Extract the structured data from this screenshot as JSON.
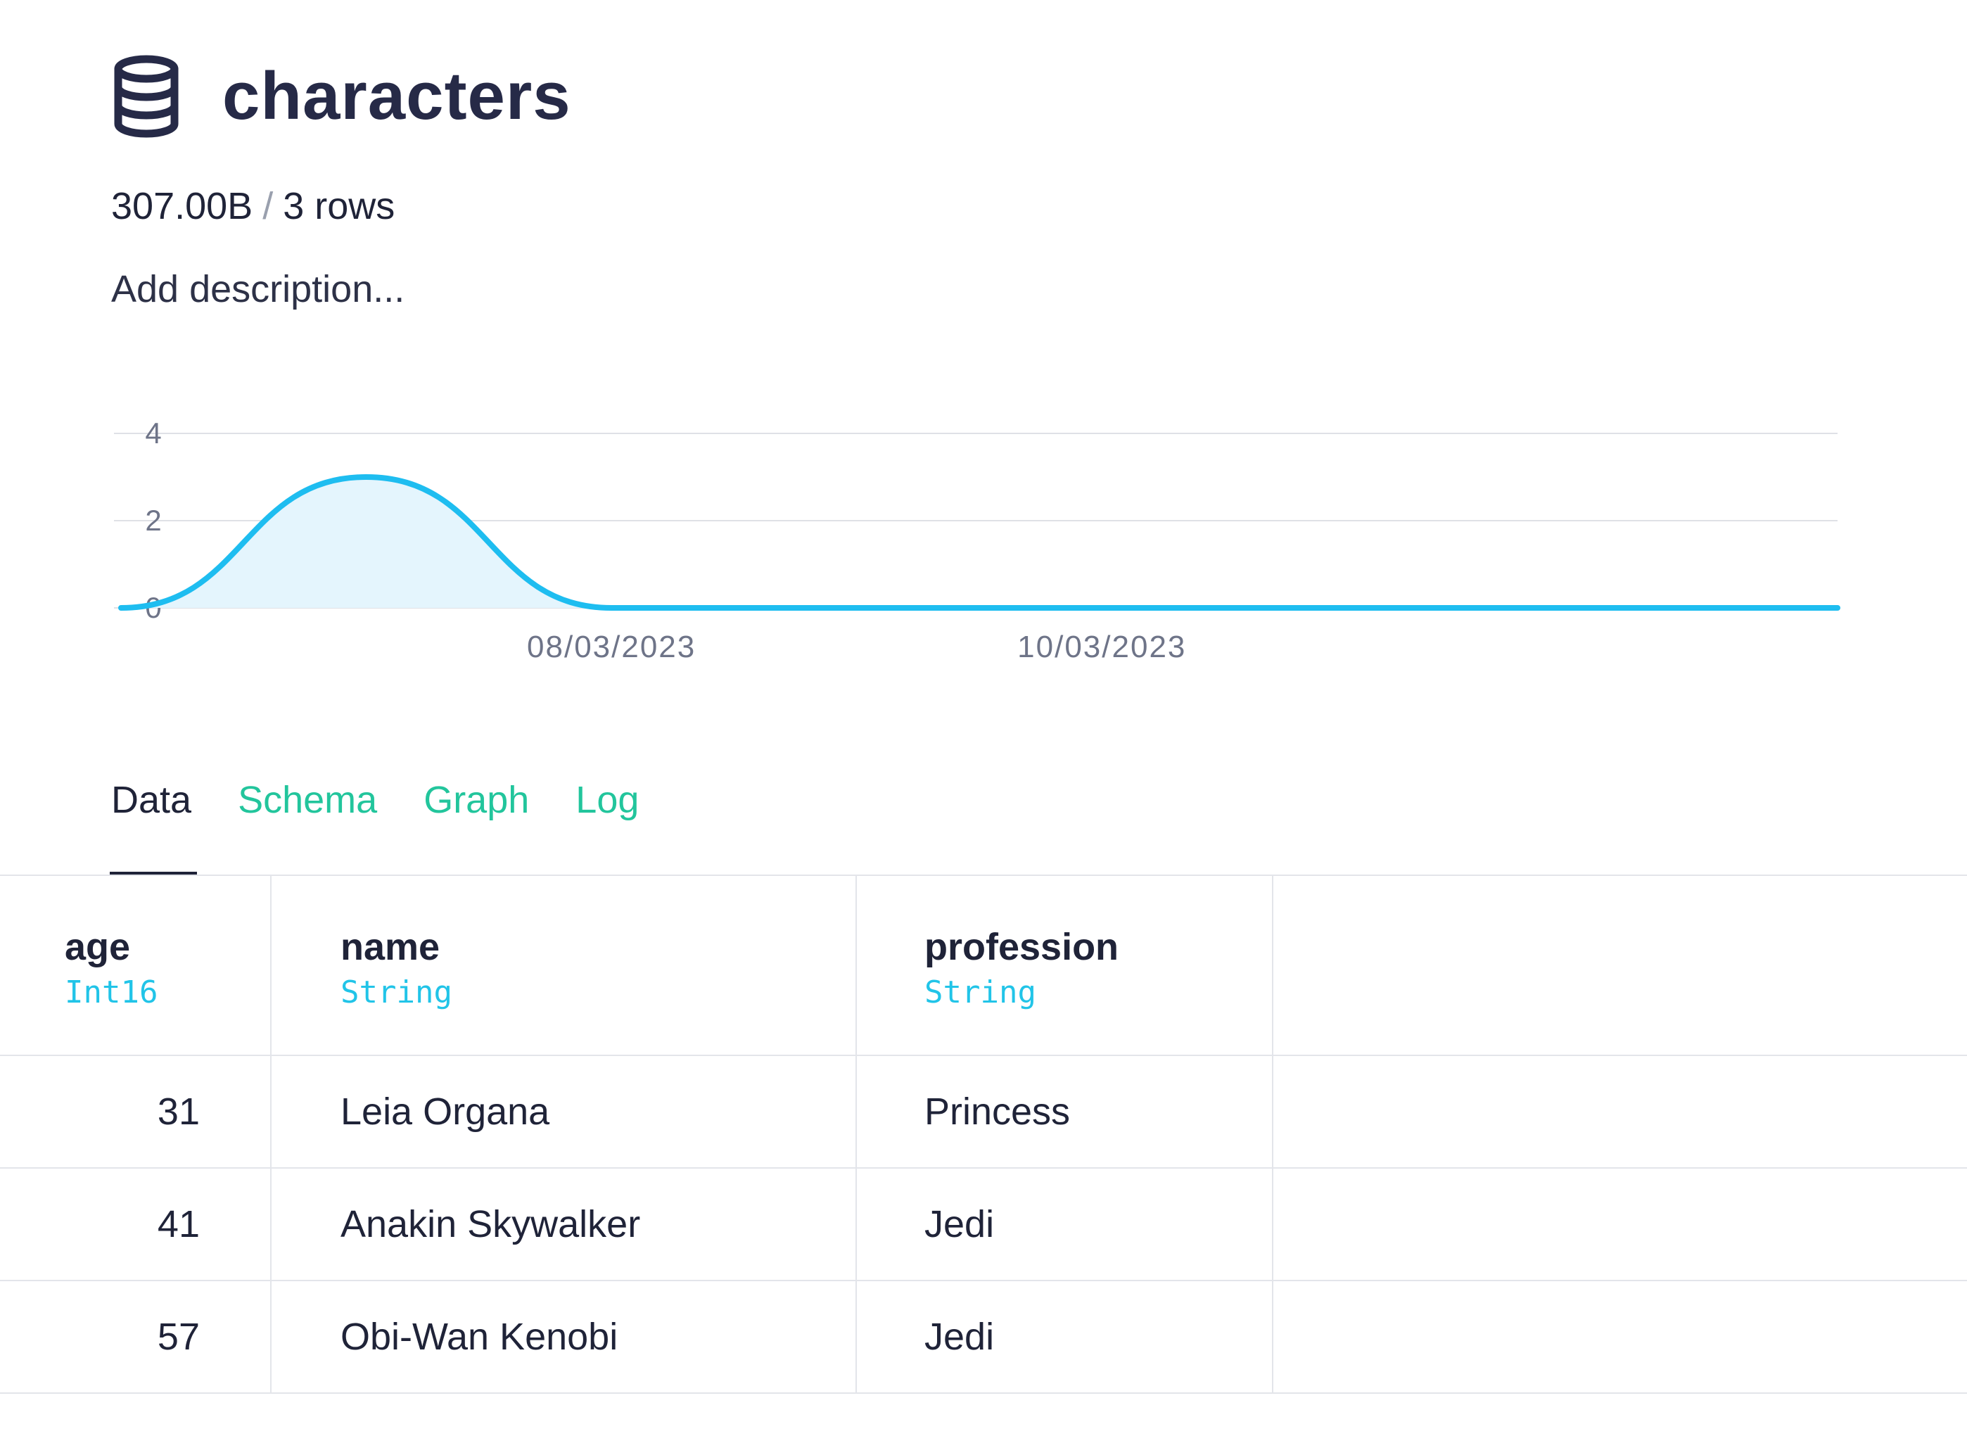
{
  "header": {
    "icon": "database-icon",
    "title": "characters"
  },
  "meta": {
    "size": "307.00B",
    "separator": "/",
    "rows": "3 rows"
  },
  "description_placeholder": "Add description...",
  "chart_data": {
    "type": "area",
    "title": "",
    "xlabel": "",
    "ylabel": "",
    "y_ticks": [
      "0",
      "2",
      "4"
    ],
    "x_tick_labels": [
      "08/03/2023",
      "10/03/2023"
    ],
    "ylim": [
      0,
      4
    ],
    "grid": true,
    "color": "#1ebdf0",
    "fill": "#e4f5fd",
    "series": [
      {
        "x": [
          "06/03/2023",
          "07/03/2023",
          "08/03/2023",
          "09/03/2023",
          "10/03/2023",
          "11/03/2023",
          "12/03/2023",
          "13/03/2023"
        ],
        "values": [
          0,
          3,
          0,
          0,
          0,
          0,
          0,
          0
        ]
      }
    ]
  },
  "tabs": [
    {
      "label": "Data",
      "active": true
    },
    {
      "label": "Schema",
      "active": false
    },
    {
      "label": "Graph",
      "active": false
    },
    {
      "label": "Log",
      "active": false
    }
  ],
  "table": {
    "columns": [
      {
        "name": "age",
        "type": "Int16"
      },
      {
        "name": "name",
        "type": "String"
      },
      {
        "name": "profession",
        "type": "String"
      }
    ],
    "rows": [
      {
        "age": "31",
        "name": "Leia Organa",
        "profession": "Princess"
      },
      {
        "age": "41",
        "name": "Anakin Skywalker",
        "profession": "Jedi"
      },
      {
        "age": "57",
        "name": "Obi-Wan Kenobi",
        "profession": "Jedi"
      }
    ]
  }
}
